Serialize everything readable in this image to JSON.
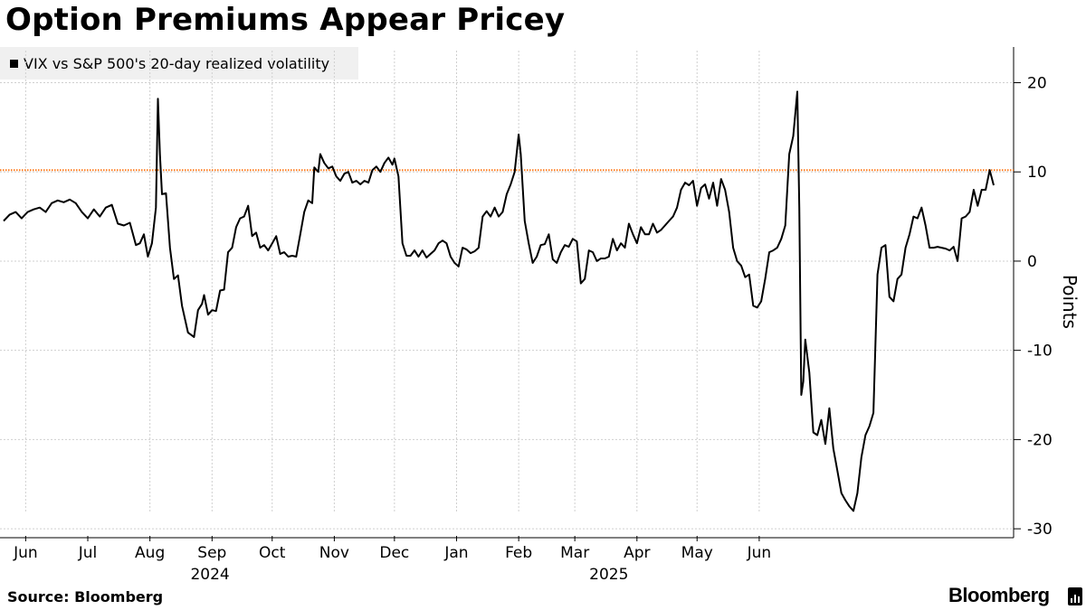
{
  "title": "Option Premiums Appear Pricey",
  "source": "Source: Bloomberg",
  "brand": "Bloomberg",
  "colors": {
    "line": "#000000",
    "reference": "#ff7a1a",
    "grid": "#cfcfcf",
    "legend_bg": "#f0f0f0"
  },
  "chart_data": {
    "type": "line",
    "title": "Option Premiums Appear Pricey",
    "ylabel": "Points",
    "xlabel": "",
    "ylim": [
      -31,
      24
    ],
    "y_ticks": [
      20,
      10,
      0,
      -10,
      -20,
      -30
    ],
    "y_tick_labels": [
      "20",
      "10",
      "0",
      "-10",
      "-20",
      "-30"
    ],
    "reference_line": {
      "value": 10.2,
      "color": "#ff7a1a",
      "style": "dotted"
    },
    "x_ticks": [
      {
        "label": "Jun",
        "date": "2024-05-31",
        "grid": true
      },
      {
        "label": "Jul",
        "date": "2024-07-01",
        "grid": false
      },
      {
        "label": "Aug",
        "date": "2024-08-01",
        "grid": true
      },
      {
        "label": "Sep",
        "date": "2024-09-01",
        "grid": true
      },
      {
        "label": "Oct",
        "date": "2024-10-01",
        "grid": true
      },
      {
        "label": "Nov",
        "date": "2024-11-01",
        "grid": true
      },
      {
        "label": "Dec",
        "date": "2024-12-01",
        "grid": true
      },
      {
        "label": "Jan",
        "date": "2025-01-01",
        "grid": true
      },
      {
        "label": "Feb",
        "date": "2025-02-01",
        "grid": true
      },
      {
        "label": "Mar",
        "date": "2025-03-01",
        "grid": true
      },
      {
        "label": "Apr",
        "date": "2025-04-01",
        "grid": true
      },
      {
        "label": "May",
        "date": "2025-05-01",
        "grid": true
      },
      {
        "label": "Jun",
        "date": "2025-06-01",
        "grid": true
      }
    ],
    "year_labels": [
      {
        "label": "2024",
        "date": "2024-08-31"
      },
      {
        "label": "2025",
        "date": "2025-03-18"
      }
    ],
    "legend": [
      {
        "name": "VIX vs S&P 500's 20-day realized volatility",
        "color": "#000000"
      }
    ],
    "series": [
      {
        "name": "VIX vs S&P 500's 20-day realized volatility",
        "points": [
          [
            "2024-05-20",
            4.5
          ],
          [
            "2024-05-23",
            5.2
          ],
          [
            "2024-05-26",
            5.5
          ],
          [
            "2024-05-29",
            4.8
          ],
          [
            "2024-06-01",
            5.5
          ],
          [
            "2024-06-04",
            5.8
          ],
          [
            "2024-06-07",
            6.0
          ],
          [
            "2024-06-10",
            5.5
          ],
          [
            "2024-06-13",
            6.5
          ],
          [
            "2024-06-16",
            6.8
          ],
          [
            "2024-06-19",
            6.6
          ],
          [
            "2024-06-22",
            6.9
          ],
          [
            "2024-06-25",
            6.5
          ],
          [
            "2024-06-28",
            5.5
          ],
          [
            "2024-07-01",
            4.8
          ],
          [
            "2024-07-04",
            5.8
          ],
          [
            "2024-07-07",
            5.0
          ],
          [
            "2024-07-10",
            6.0
          ],
          [
            "2024-07-13",
            6.3
          ],
          [
            "2024-07-16",
            4.2
          ],
          [
            "2024-07-19",
            4.0
          ],
          [
            "2024-07-22",
            4.3
          ],
          [
            "2024-07-25",
            1.8
          ],
          [
            "2024-07-27",
            2.0
          ],
          [
            "2024-07-29",
            3.0
          ],
          [
            "2024-07-31",
            0.5
          ],
          [
            "2024-08-02",
            2.0
          ],
          [
            "2024-08-04",
            6.0
          ],
          [
            "2024-08-05",
            18.2
          ],
          [
            "2024-08-06",
            12.0
          ],
          [
            "2024-08-07",
            7.5
          ],
          [
            "2024-08-09",
            7.6
          ],
          [
            "2024-08-11",
            1.5
          ],
          [
            "2024-08-13",
            -2.0
          ],
          [
            "2024-08-15",
            -1.6
          ],
          [
            "2024-08-17",
            -5.0
          ],
          [
            "2024-08-20",
            -8.0
          ],
          [
            "2024-08-23",
            -8.5
          ],
          [
            "2024-08-25",
            -5.5
          ],
          [
            "2024-08-27",
            -4.8
          ],
          [
            "2024-08-28",
            -3.8
          ],
          [
            "2024-08-30",
            -6.0
          ],
          [
            "2024-09-01",
            -5.5
          ],
          [
            "2024-09-03",
            -5.6
          ],
          [
            "2024-09-05",
            -3.3
          ],
          [
            "2024-09-07",
            -3.2
          ],
          [
            "2024-09-09",
            1.0
          ],
          [
            "2024-09-11",
            1.5
          ],
          [
            "2024-09-13",
            3.8
          ],
          [
            "2024-09-15",
            4.8
          ],
          [
            "2024-09-17",
            5.0
          ],
          [
            "2024-09-19",
            6.2
          ],
          [
            "2024-09-21",
            2.8
          ],
          [
            "2024-09-23",
            3.2
          ],
          [
            "2024-09-25",
            1.5
          ],
          [
            "2024-09-27",
            1.8
          ],
          [
            "2024-09-29",
            1.2
          ],
          [
            "2024-10-01",
            2.0
          ],
          [
            "2024-10-03",
            2.8
          ],
          [
            "2024-10-05",
            0.8
          ],
          [
            "2024-10-07",
            1.0
          ],
          [
            "2024-10-09",
            0.5
          ],
          [
            "2024-10-11",
            0.6
          ],
          [
            "2024-10-13",
            0.5
          ],
          [
            "2024-10-15",
            3.0
          ],
          [
            "2024-10-17",
            5.5
          ],
          [
            "2024-10-19",
            6.8
          ],
          [
            "2024-10-21",
            6.5
          ],
          [
            "2024-10-22",
            10.5
          ],
          [
            "2024-10-24",
            10.0
          ],
          [
            "2024-10-25",
            12.0
          ],
          [
            "2024-10-27",
            11.0
          ],
          [
            "2024-10-29",
            10.4
          ],
          [
            "2024-10-31",
            10.6
          ],
          [
            "2024-11-02",
            9.5
          ],
          [
            "2024-11-04",
            9.0
          ],
          [
            "2024-11-06",
            9.8
          ],
          [
            "2024-11-08",
            10.0
          ],
          [
            "2024-11-10",
            8.8
          ],
          [
            "2024-11-12",
            9.0
          ],
          [
            "2024-11-14",
            8.6
          ],
          [
            "2024-11-16",
            9.0
          ],
          [
            "2024-11-18",
            8.8
          ],
          [
            "2024-11-20",
            10.2
          ],
          [
            "2024-11-22",
            10.6
          ],
          [
            "2024-11-24",
            10.0
          ],
          [
            "2024-11-26",
            11.0
          ],
          [
            "2024-11-28",
            11.6
          ],
          [
            "2024-11-30",
            10.8
          ],
          [
            "2024-12-01",
            11.5
          ],
          [
            "2024-12-03",
            9.5
          ],
          [
            "2024-12-05",
            2.0
          ],
          [
            "2024-12-07",
            0.6
          ],
          [
            "2024-12-09",
            0.6
          ],
          [
            "2024-12-11",
            1.2
          ],
          [
            "2024-12-13",
            0.5
          ],
          [
            "2024-12-15",
            1.2
          ],
          [
            "2024-12-17",
            0.4
          ],
          [
            "2024-12-19",
            0.8
          ],
          [
            "2024-12-21",
            1.2
          ],
          [
            "2024-12-23",
            2.0
          ],
          [
            "2024-12-25",
            2.3
          ],
          [
            "2024-12-27",
            2.0
          ],
          [
            "2024-12-29",
            0.5
          ],
          [
            "2024-12-31",
            -0.2
          ],
          [
            "2025-01-02",
            -0.6
          ],
          [
            "2025-01-04",
            1.5
          ],
          [
            "2025-01-06",
            1.3
          ],
          [
            "2025-01-08",
            0.9
          ],
          [
            "2025-01-10",
            1.1
          ],
          [
            "2025-01-12",
            1.5
          ],
          [
            "2025-01-14",
            5.0
          ],
          [
            "2025-01-16",
            5.6
          ],
          [
            "2025-01-18",
            5.0
          ],
          [
            "2025-01-20",
            6.0
          ],
          [
            "2025-01-22",
            5.0
          ],
          [
            "2025-01-24",
            5.5
          ],
          [
            "2025-01-26",
            7.5
          ],
          [
            "2025-01-28",
            8.6
          ],
          [
            "2025-01-30",
            10.0
          ],
          [
            "2025-02-01",
            14.2
          ],
          [
            "2025-02-02",
            12.0
          ],
          [
            "2025-02-04",
            4.5
          ],
          [
            "2025-02-06",
            2.0
          ],
          [
            "2025-02-08",
            -0.2
          ],
          [
            "2025-02-10",
            0.5
          ],
          [
            "2025-02-12",
            1.8
          ],
          [
            "2025-02-14",
            1.9
          ],
          [
            "2025-02-16",
            3.0
          ],
          [
            "2025-02-18",
            0.2
          ],
          [
            "2025-02-20",
            -0.2
          ],
          [
            "2025-02-22",
            1.0
          ],
          [
            "2025-02-24",
            1.8
          ],
          [
            "2025-02-26",
            1.6
          ],
          [
            "2025-02-28",
            2.5
          ],
          [
            "2025-03-02",
            2.2
          ],
          [
            "2025-03-04",
            -2.5
          ],
          [
            "2025-03-06",
            -2.0
          ],
          [
            "2025-03-08",
            1.2
          ],
          [
            "2025-03-10",
            1.0
          ],
          [
            "2025-03-12",
            0.0
          ],
          [
            "2025-03-14",
            0.3
          ],
          [
            "2025-03-16",
            0.3
          ],
          [
            "2025-03-18",
            0.5
          ],
          [
            "2025-03-20",
            2.5
          ],
          [
            "2025-03-22",
            1.2
          ],
          [
            "2025-03-24",
            2.0
          ],
          [
            "2025-03-26",
            1.5
          ],
          [
            "2025-03-28",
            4.2
          ],
          [
            "2025-03-30",
            3.0
          ],
          [
            "2025-04-01",
            2.0
          ],
          [
            "2025-04-03",
            3.8
          ],
          [
            "2025-04-05",
            3.0
          ],
          [
            "2025-04-07",
            3.0
          ],
          [
            "2025-04-09",
            4.2
          ],
          [
            "2025-04-11",
            3.2
          ],
          [
            "2025-04-13",
            3.5
          ],
          [
            "2025-04-15",
            4.0
          ],
          [
            "2025-04-17",
            4.5
          ],
          [
            "2025-04-19",
            5.0
          ],
          [
            "2025-04-21",
            6.0
          ],
          [
            "2025-04-23",
            8.0
          ],
          [
            "2025-04-25",
            8.8
          ],
          [
            "2025-04-27",
            8.5
          ],
          [
            "2025-04-29",
            9.0
          ],
          [
            "2025-05-01",
            6.2
          ],
          [
            "2025-05-03",
            8.2
          ],
          [
            "2025-05-05",
            8.6
          ],
          [
            "2025-05-07",
            7.0
          ],
          [
            "2025-05-09",
            8.8
          ],
          [
            "2025-05-11",
            6.2
          ],
          [
            "2025-05-13",
            9.2
          ],
          [
            "2025-05-15",
            8.0
          ],
          [
            "2025-05-17",
            5.5
          ],
          [
            "2025-05-19",
            1.5
          ],
          [
            "2025-05-21",
            0.0
          ],
          [
            "2025-05-23",
            -0.5
          ],
          [
            "2025-05-25",
            -1.8
          ],
          [
            "2025-05-27",
            -1.5
          ],
          [
            "2025-05-29",
            -5.0
          ],
          [
            "2025-05-31",
            -5.2
          ],
          [
            "2025-06-02",
            -4.5
          ],
          [
            "2025-06-04",
            -2.0
          ],
          [
            "2025-06-06",
            1.0
          ],
          [
            "2025-06-08",
            1.2
          ],
          [
            "2025-06-10",
            1.5
          ],
          [
            "2025-06-12",
            2.5
          ],
          [
            "2025-06-14",
            4.0
          ],
          [
            "2025-06-16",
            12.0
          ],
          [
            "2025-06-18",
            14.0
          ],
          [
            "2025-06-20",
            19.0
          ],
          [
            "2025-06-21",
            6.0
          ],
          [
            "2025-06-22",
            -15.0
          ],
          [
            "2025-06-23",
            -13.5
          ],
          [
            "2025-06-24",
            -8.8
          ],
          [
            "2025-06-26",
            -12.5
          ],
          [
            "2025-06-28",
            -19.2
          ],
          [
            "2025-06-30",
            -19.5
          ],
          [
            "2025-07-02",
            -17.8
          ],
          [
            "2025-07-04",
            -20.5
          ],
          [
            "2025-07-06",
            -16.5
          ],
          [
            "2025-07-08",
            -21.0
          ],
          [
            "2025-07-10",
            -23.5
          ],
          [
            "2025-07-12",
            -26.0
          ],
          [
            "2025-07-14",
            -26.8
          ],
          [
            "2025-07-16",
            -27.5
          ],
          [
            "2025-07-18",
            -28.0
          ],
          [
            "2025-07-20",
            -26.0
          ],
          [
            "2025-07-22",
            -22.0
          ],
          [
            "2025-07-24",
            -19.5
          ],
          [
            "2025-07-26",
            -18.5
          ],
          [
            "2025-07-28",
            -17.0
          ],
          [
            "2025-07-30",
            -1.5
          ],
          [
            "2025-08-01",
            1.5
          ],
          [
            "2025-08-03",
            1.8
          ],
          [
            "2025-08-05",
            -4.0
          ],
          [
            "2025-08-07",
            -4.5
          ],
          [
            "2025-08-09",
            -2.0
          ],
          [
            "2025-08-11",
            -1.5
          ],
          [
            "2025-08-13",
            1.5
          ],
          [
            "2025-08-15",
            3.0
          ],
          [
            "2025-08-17",
            5.0
          ],
          [
            "2025-08-19",
            4.8
          ],
          [
            "2025-08-21",
            6.0
          ],
          [
            "2025-08-23",
            4.0
          ],
          [
            "2025-08-25",
            1.5
          ],
          [
            "2025-08-27",
            1.5
          ],
          [
            "2025-08-29",
            1.6
          ],
          [
            "2025-08-31",
            1.5
          ],
          [
            "2025-09-02",
            1.4
          ],
          [
            "2025-09-04",
            1.2
          ],
          [
            "2025-09-06",
            1.6
          ],
          [
            "2025-09-08",
            0.0
          ],
          [
            "2025-09-10",
            4.8
          ],
          [
            "2025-09-12",
            5.0
          ],
          [
            "2025-09-14",
            5.5
          ],
          [
            "2025-09-16",
            8.0
          ],
          [
            "2025-09-18",
            6.2
          ],
          [
            "2025-09-20",
            8.0
          ],
          [
            "2025-09-22",
            8.0
          ],
          [
            "2025-09-24",
            10.2
          ],
          [
            "2025-09-26",
            8.5
          ]
        ]
      }
    ]
  }
}
